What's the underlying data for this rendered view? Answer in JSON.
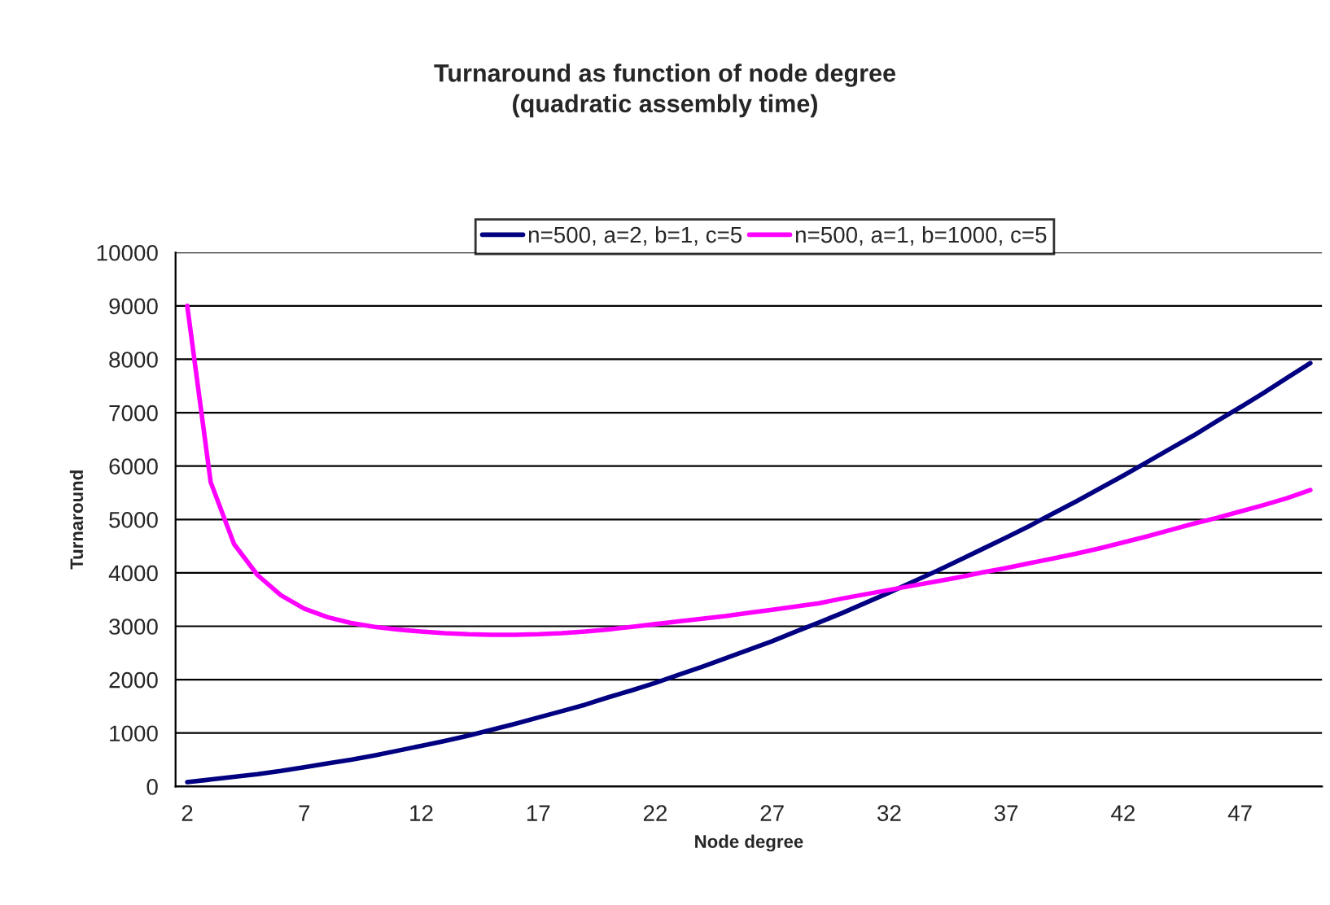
{
  "chart_data": {
    "type": "line",
    "title": "Turnaround as function of node degree\n(quadratic assembly time)",
    "xlabel": "Node degree",
    "ylabel": "Turnaround",
    "categories": [
      "2",
      null,
      null,
      null,
      null,
      "7",
      null,
      null,
      null,
      null,
      "12",
      null,
      null,
      null,
      null,
      "17",
      null,
      null,
      null,
      null,
      "22",
      null,
      null,
      null,
      null,
      "27",
      null,
      null,
      null,
      null,
      "32",
      null,
      null,
      null,
      null,
      "37",
      null,
      null,
      null,
      null,
      "42",
      null,
      null,
      null,
      null,
      "47",
      null,
      null,
      null
    ],
    "series": [
      {
        "name": "n=500, a=2, b=1, c=5",
        "color": "#000080",
        "values": [
          80,
          130,
          180,
          230,
          290,
          360,
          430,
          500,
          580,
          670,
          760,
          850,
          950,
          1060,
          1170,
          1290,
          1410,
          1530,
          1670,
          1800,
          1940,
          2090,
          2240,
          2400,
          2560,
          2720,
          2900,
          3070,
          3250,
          3440,
          3630,
          3830,
          4030,
          4240,
          4450,
          4660,
          4880,
          5110,
          5340,
          5580,
          5820,
          6070,
          6320,
          6570,
          6840,
          7100,
          7370,
          7650,
          7930
        ]
      },
      {
        "name": "n=500, a=1, b=1000, c=5",
        "color": "#ff00ff",
        "values": [
          9000,
          5700,
          4540,
          3960,
          3580,
          3330,
          3170,
          3060,
          2990,
          2940,
          2900,
          2870,
          2850,
          2840,
          2840,
          2850,
          2870,
          2900,
          2940,
          2990,
          3040,
          3090,
          3140,
          3190,
          3250,
          3310,
          3370,
          3430,
          3520,
          3600,
          3680,
          3760,
          3840,
          3920,
          4010,
          4090,
          4180,
          4270,
          4360,
          4460,
          4570,
          4680,
          4800,
          4920,
          5030,
          5150,
          5270,
          5400,
          5550
        ]
      }
    ],
    "ylim": [
      0,
      10000
    ],
    "yticks": [
      0,
      1000,
      2000,
      3000,
      4000,
      5000,
      6000,
      7000,
      8000,
      9000,
      10000
    ],
    "grid": "y",
    "legend": "top",
    "marker": "none",
    "line_style": "solid"
  }
}
